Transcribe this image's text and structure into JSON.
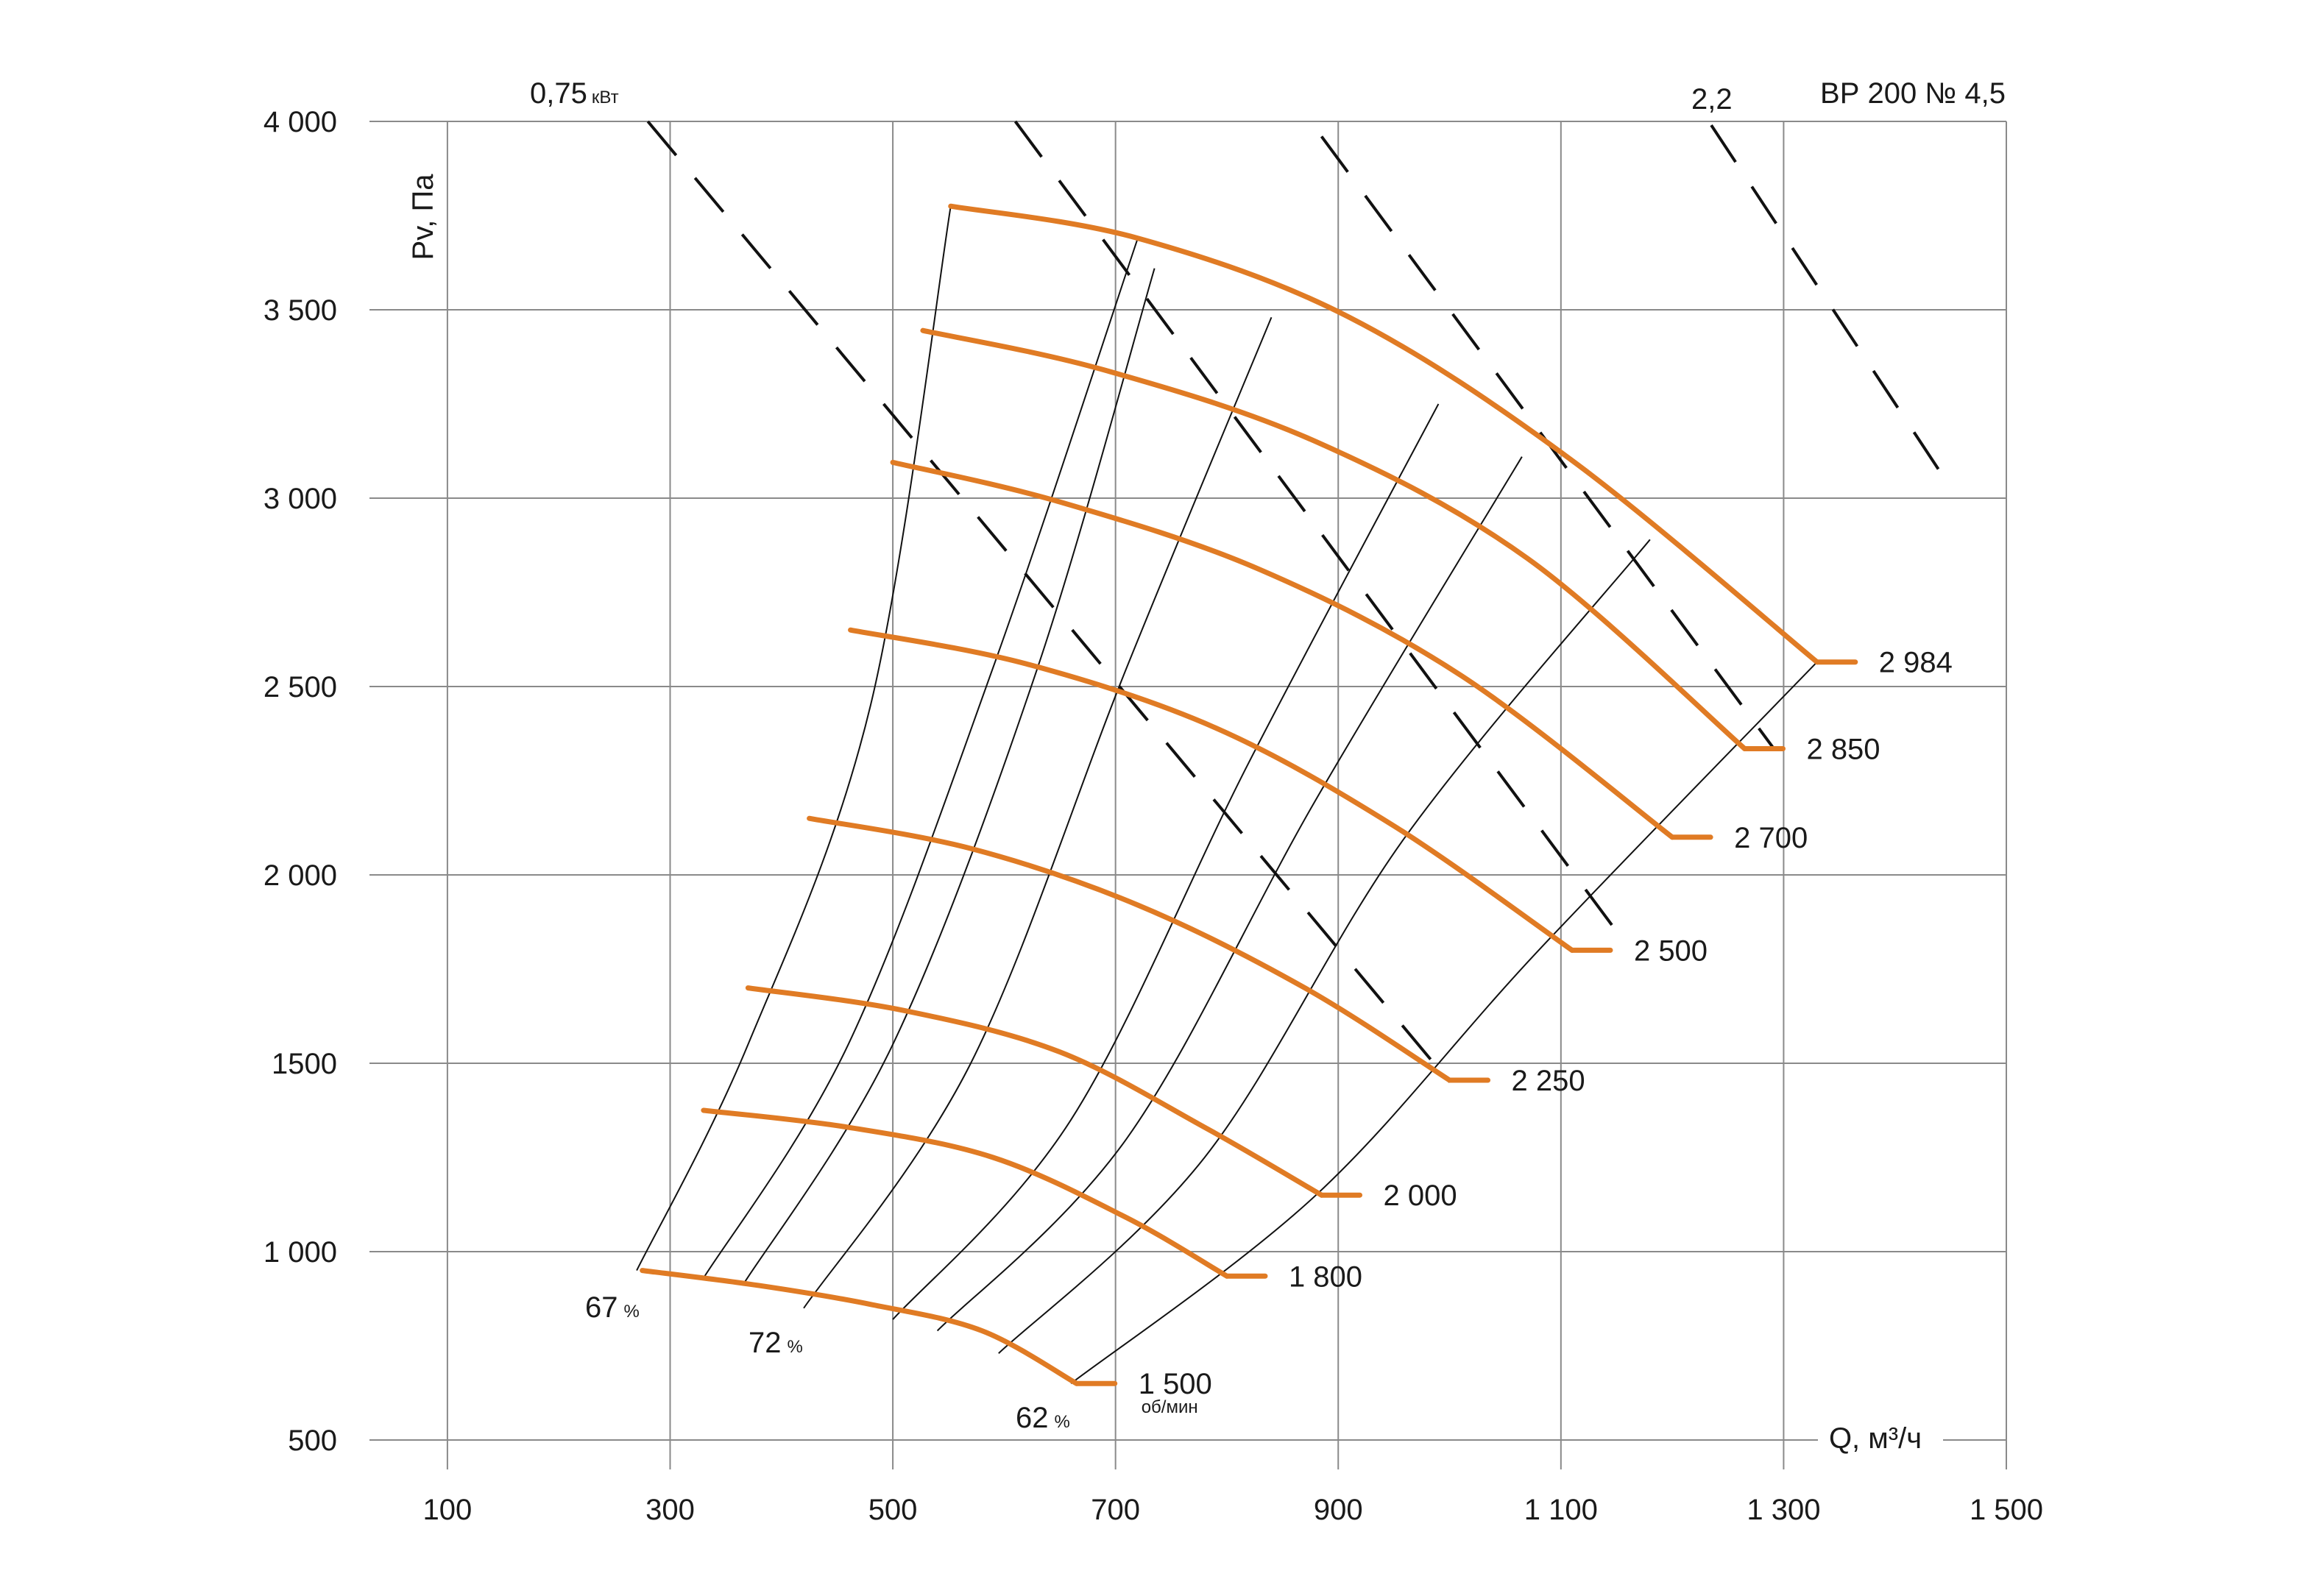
{
  "chart_data": {
    "type": "line",
    "title": "ВР  200 № 4,5",
    "xlabel": "Q, м³/ч",
    "ylabel": "Pv, Па",
    "xlim": [
      30,
      1500
    ],
    "ylim": [
      500,
      4000
    ],
    "x_ticks": [
      "100",
      "300",
      "500",
      "700",
      "900",
      "1 100",
      "1 300",
      "1 500"
    ],
    "x_tick_values": [
      100,
      300,
      500,
      700,
      900,
      1100,
      1300,
      1500
    ],
    "y_ticks": [
      "500",
      "1 000",
      "1500",
      "2 000",
      "2 500",
      "3 000",
      "3 500",
      "4 000"
    ],
    "y_tick_values": [
      500,
      1000,
      1500,
      2000,
      2500,
      3000,
      3500,
      4000
    ],
    "grid": true,
    "colors": {
      "rpm": "#e07b24",
      "grid": "#8a8a8a",
      "lines": "#111111"
    },
    "rpm_unit": "об/мин",
    "rpm_curves": [
      {
        "name": "1 500",
        "points": [
          [
            275,
            950
          ],
          [
            380,
            910
          ],
          [
            480,
            860
          ],
          [
            580,
            790
          ],
          [
            665,
            650
          ]
        ]
      },
      {
        "name": "1 800",
        "points": [
          [
            330,
            1375
          ],
          [
            460,
            1330
          ],
          [
            590,
            1250
          ],
          [
            710,
            1090
          ],
          [
            800,
            935
          ]
        ]
      },
      {
        "name": "2 000",
        "points": [
          [
            370,
            1700
          ],
          [
            510,
            1640
          ],
          [
            650,
            1530
          ],
          [
            780,
            1330
          ],
          [
            885,
            1150
          ]
        ]
      },
      {
        "name": "2 250",
        "points": [
          [
            425,
            2150
          ],
          [
            570,
            2070
          ],
          [
            720,
            1920
          ],
          [
            870,
            1700
          ],
          [
            1000,
            1455
          ]
        ]
      },
      {
        "name": "2 500",
        "points": [
          [
            462,
            2650
          ],
          [
            620,
            2560
          ],
          [
            790,
            2390
          ],
          [
            950,
            2130
          ],
          [
            1110,
            1800
          ]
        ]
      },
      {
        "name": "2 700",
        "points": [
          [
            500,
            3095
          ],
          [
            650,
            2990
          ],
          [
            830,
            2810
          ],
          [
            1010,
            2530
          ],
          [
            1200,
            2100
          ]
        ]
      },
      {
        "name": "2 850",
        "points": [
          [
            527,
            3445
          ],
          [
            690,
            3340
          ],
          [
            880,
            3150
          ],
          [
            1070,
            2840
          ],
          [
            1265,
            2335
          ]
        ]
      },
      {
        "name": "2 984",
        "points": [
          [
            552,
            3775
          ],
          [
            720,
            3690
          ],
          [
            910,
            3480
          ],
          [
            1110,
            3100
          ],
          [
            1330,
            2565
          ]
        ]
      }
    ],
    "efficiency_labels": [
      {
        "name": "67",
        "unit": "%"
      },
      {
        "name": "72",
        "unit": "%"
      },
      {
        "name": "62",
        "unit": "%"
      }
    ],
    "efficiency_lines": [
      {
        "points": [
          [
            270,
            950
          ],
          [
            370,
            1550
          ],
          [
            480,
            2450
          ],
          [
            552,
            3775
          ]
        ]
      },
      {
        "points": [
          [
            330,
            930
          ],
          [
            460,
            1550
          ],
          [
            590,
            2550
          ],
          [
            720,
            3690
          ]
        ]
      },
      {
        "points": [
          [
            365,
            910
          ],
          [
            500,
            1550
          ],
          [
            630,
            2550
          ],
          [
            735,
            3610
          ]
        ]
      },
      {
        "points": [
          [
            420,
            850
          ],
          [
            570,
            1500
          ],
          [
            710,
            2550
          ],
          [
            840,
            3480
          ]
        ]
      },
      {
        "points": [
          [
            500,
            820
          ],
          [
            660,
            1350
          ],
          [
            820,
            2300
          ],
          [
            990,
            3250
          ]
        ]
      },
      {
        "points": [
          [
            540,
            790
          ],
          [
            710,
            1300
          ],
          [
            880,
            2200
          ],
          [
            1065,
            3110
          ]
        ]
      },
      {
        "points": [
          [
            595,
            730
          ],
          [
            780,
            1250
          ],
          [
            960,
            2100
          ],
          [
            1180,
            2890
          ]
        ]
      },
      {
        "points": [
          [
            660,
            650
          ],
          [
            880,
            1150
          ],
          [
            1080,
            1800
          ],
          [
            1330,
            2565
          ]
        ]
      }
    ],
    "power_labels": [
      "0,75",
      "2,2"
    ],
    "power_unit": "кВт",
    "power_lines": [
      {
        "points": [
          [
            280,
            4000
          ],
          [
            1000,
            1450
          ]
        ]
      },
      {
        "points": [
          [
            610,
            4000
          ],
          [
            1150,
            1850
          ]
        ]
      },
      {
        "points": [
          [
            885,
            3960
          ],
          [
            1290,
            2340
          ]
        ]
      },
      {
        "points": [
          [
            1235,
            3990
          ],
          [
            1445,
            3050
          ]
        ]
      }
    ]
  }
}
